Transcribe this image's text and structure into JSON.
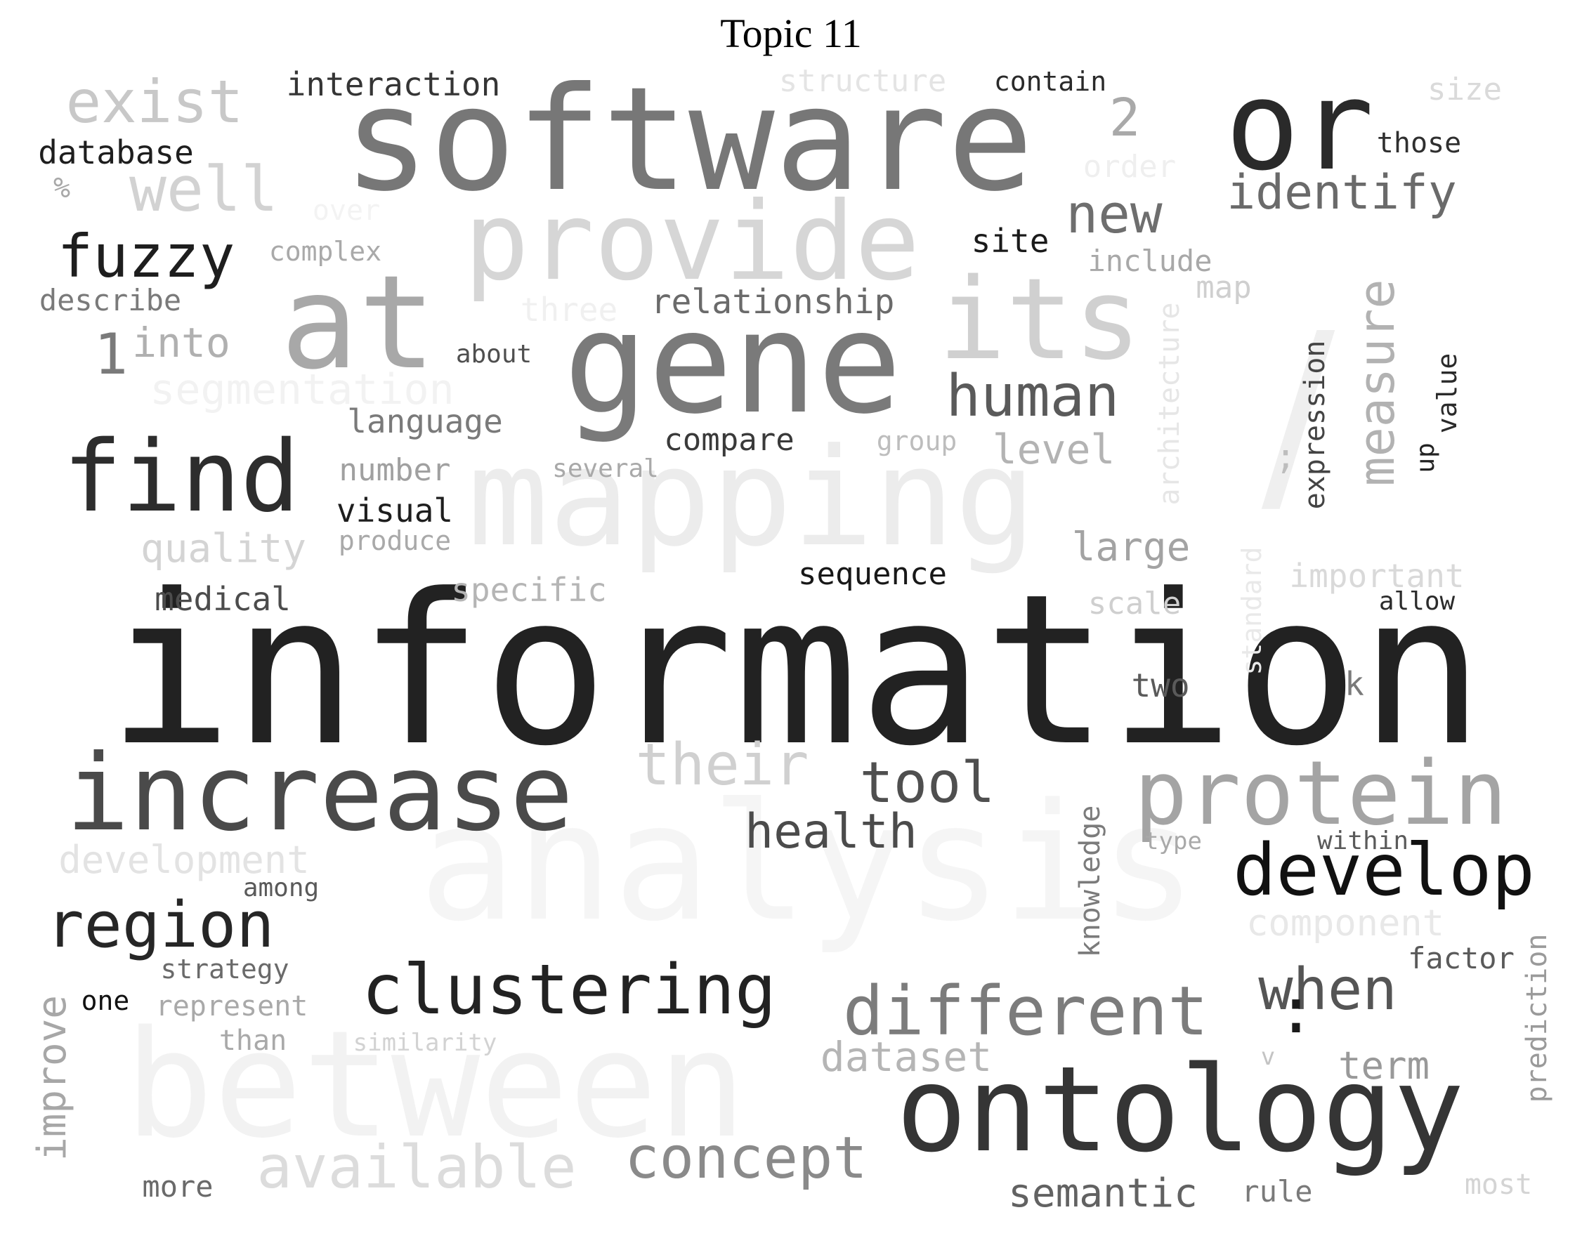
{
  "title": "Topic 11",
  "words": [
    {
      "text": "information",
      "color": "#222222"
    },
    {
      "text": "analysis",
      "color": "#f5f5f5"
    },
    {
      "text": "between",
      "color": "#f2f2f2"
    },
    {
      "text": "mapping",
      "color": "#ececec"
    },
    {
      "text": "software",
      "color": "#777777"
    },
    {
      "text": "gene",
      "color": "#7a7a7a"
    },
    {
      "text": "provide",
      "color": "#d6d6d6"
    },
    {
      "text": "at",
      "color": "#a8a8a8"
    },
    {
      "text": "its",
      "color": "#d0d0d0"
    },
    {
      "text": "or",
      "color": "#2a2a2a"
    },
    {
      "text": "/",
      "color": "#efefef"
    },
    {
      "text": "find",
      "color": "#2d2d2d"
    },
    {
      "text": "increase",
      "color": "#4a4a4a"
    },
    {
      "text": "ontology",
      "color": "#353535"
    },
    {
      "text": "protein",
      "color": "#a4a4a4"
    },
    {
      "text": "develop",
      "color": "#111111"
    },
    {
      "text": "clustering",
      "color": "#222222"
    },
    {
      "text": "different",
      "color": "#7c7c7c"
    },
    {
      "text": "region",
      "color": "#262626"
    },
    {
      "text": "available",
      "color": "#dcdcdc"
    },
    {
      "text": "concept",
      "color": "#8a8a8a"
    },
    {
      "text": "their",
      "color": "#d0d0d0"
    },
    {
      "text": "tool",
      "color": "#4f4f4f"
    },
    {
      "text": "human",
      "color": "#5a5a5a"
    },
    {
      "text": "health",
      "color": "#4b4b4b"
    },
    {
      "text": "when",
      "color": "#555555"
    },
    {
      "text": "fuzzy",
      "color": "#1e1e1e"
    },
    {
      "text": "exist",
      "color": "#c8c8c8"
    },
    {
      "text": "well",
      "color": "#d2d2d2"
    },
    {
      "text": "new",
      "color": "#6e6e6e"
    },
    {
      "text": "identify",
      "color": "#6a6a6a"
    },
    {
      "text": "measure",
      "color": "#b2b2b2"
    },
    {
      "text": "improve",
      "color": "#a7a7a7"
    },
    {
      "text": "1",
      "color": "#7a7a7a"
    },
    {
      "text": "into",
      "color": "#b0b0b0"
    },
    {
      "text": "2",
      "color": "#a9a9a9"
    },
    {
      "text": "segmentation",
      "color": "#f2f2f2"
    },
    {
      "text": "development",
      "color": "#e3e3e3"
    },
    {
      "text": "dataset",
      "color": "#b5b5b5"
    },
    {
      "text": "semantic",
      "color": "#626262"
    },
    {
      "text": "term",
      "color": "#999999"
    },
    {
      "text": "level",
      "color": "#b3b3b3"
    },
    {
      "text": "large",
      "color": "#a3a3a3"
    },
    {
      "text": "expression",
      "color": "#444444"
    },
    {
      "text": "architecture",
      "color": "#e6e6e6"
    },
    {
      "text": "knowledge",
      "color": "#7b7b7b"
    },
    {
      "text": "prediction",
      "color": "#9a9a9a"
    },
    {
      "text": "component",
      "color": "#e8e8e8"
    },
    {
      "text": "quality",
      "color": "#d4d4d4"
    },
    {
      "text": "specific",
      "color": "#b5b5b5"
    },
    {
      "text": "language",
      "color": "#7a7a7a"
    },
    {
      "text": "relationship",
      "color": "#6a6a6a"
    },
    {
      "text": "interaction",
      "color": "#353535"
    },
    {
      "text": "database",
      "color": "#1e1e1e"
    },
    {
      "text": "medical",
      "color": "#4c4c4c"
    },
    {
      "text": "sequence",
      "color": "#181818"
    },
    {
      "text": "compare",
      "color": "#3a3a3a"
    },
    {
      "text": "visual",
      "color": "#1e1e1e"
    },
    {
      "text": "number",
      "color": "#a0a0a0"
    },
    {
      "text": "describe",
      "color": "#7a7a7a"
    },
    {
      "text": "complex",
      "color": "#a9a9a9"
    },
    {
      "text": "structure",
      "color": "#e4e4e4"
    },
    {
      "text": "contain",
      "color": "#2a2a2a"
    },
    {
      "text": "size",
      "color": "#dadada"
    },
    {
      "text": "those",
      "color": "#2f2f2f"
    },
    {
      "text": "order",
      "color": "#efefef"
    },
    {
      "text": "over",
      "color": "#f3f3f3"
    },
    {
      "text": "three",
      "color": "#f0f0f0"
    },
    {
      "text": "site",
      "color": "#1a1a1a"
    },
    {
      "text": "include",
      "color": "#a8a8a8"
    },
    {
      "text": "map",
      "color": "#cfcfcf"
    },
    {
      "text": "about",
      "color": "#4f4f4f"
    },
    {
      "text": "several",
      "color": "#a9a9a9"
    },
    {
      "text": "group",
      "color": "#bdbdbd"
    },
    {
      "text": "produce",
      "color": "#a9a9a9"
    },
    {
      "text": "important",
      "color": "#d9d9d9"
    },
    {
      "text": "allow",
      "color": "#2b2b2b"
    },
    {
      "text": "scale",
      "color": "#cfcfcf"
    },
    {
      "text": "standard",
      "color": "#e9e9e9"
    },
    {
      "text": "two",
      "color": "#5a5a5a"
    },
    {
      "text": "k",
      "color": "#7a7a7a"
    },
    {
      "text": "value",
      "color": "#2a2a2a"
    },
    {
      "text": "up",
      "color": "#222222"
    },
    {
      "text": ";",
      "color": "#bdbdbd"
    },
    {
      "text": "%",
      "color": "#a8a8a8"
    },
    {
      "text": "type",
      "color": "#a9a9a9"
    },
    {
      "text": "within",
      "color": "#5a5a5a"
    },
    {
      "text": "among",
      "color": "#5a5a5a"
    },
    {
      "text": "strategy",
      "color": "#6a6a6a"
    },
    {
      "text": "one",
      "color": "#111111"
    },
    {
      "text": "represent",
      "color": "#a9a9a9"
    },
    {
      "text": "than",
      "color": "#a9a9a9"
    },
    {
      "text": "similarity",
      "color": "#d2d2d2"
    },
    {
      "text": "factor",
      "color": "#5a5a5a"
    },
    {
      "text": "v",
      "color": "#c4c4c4"
    },
    {
      "text": "more",
      "color": "#6a6a6a"
    },
    {
      "text": "rule",
      "color": "#7a7a7a"
    },
    {
      "text": "most",
      "color": "#d4d4d4"
    },
    {
      "text": ":",
      "color": "#1a1a1a"
    }
  ]
}
